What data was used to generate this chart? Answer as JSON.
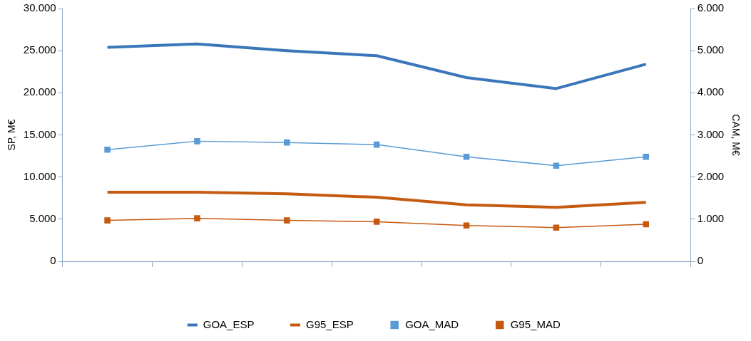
{
  "chart_data": {
    "type": "line",
    "ylabel": "SP, M€",
    "y2label": "CAM, M€",
    "categories": [
      null,
      null,
      null,
      null,
      null,
      null,
      null
    ],
    "series": [
      {
        "name": "GOA_ESP",
        "color": "#3a76b9",
        "marker": "none",
        "values": [
          25400,
          25800,
          25000,
          24400,
          21800,
          20500,
          23400
        ]
      },
      {
        "name": "G95_ESP",
        "color": "#c55a11",
        "marker": "none",
        "values": [
          8200,
          8200,
          8000,
          7600,
          6700,
          6400,
          7000
        ]
      },
      {
        "name": "GOA_MAD",
        "color": "#5b9bd5",
        "marker": "square",
        "axis": "y2",
        "values": [
          2650,
          2850,
          2820,
          2770,
          2480,
          2270,
          2480
        ]
      },
      {
        "name": "G95_MAD",
        "color": "#c55a11",
        "marker": "square",
        "axis": "y2",
        "values": [
          970,
          1020,
          970,
          940,
          850,
          800,
          880
        ]
      }
    ],
    "ylim": [
      0,
      30000
    ],
    "yticks": [
      {
        "value": 0,
        "label": "0"
      },
      {
        "value": 5000,
        "label": "5.000"
      },
      {
        "value": 10000,
        "label": "10.000"
      },
      {
        "value": 15000,
        "label": "15.000"
      },
      {
        "value": 20000,
        "label": "20.000"
      },
      {
        "value": 25000,
        "label": "25.000"
      },
      {
        "value": 30000,
        "label": "30.000"
      }
    ],
    "y2lim": [
      0,
      6000
    ],
    "y2ticks": [
      {
        "value": 0,
        "label": "0"
      },
      {
        "value": 1000,
        "label": "1.000"
      },
      {
        "value": 2000,
        "label": "2.000"
      },
      {
        "value": 3000,
        "label": "3.000"
      },
      {
        "value": 4000,
        "label": "4.000"
      },
      {
        "value": 5000,
        "label": "5.000"
      },
      {
        "value": 6000,
        "label": "6.000"
      }
    ],
    "grid": false,
    "legend": "bottom"
  }
}
